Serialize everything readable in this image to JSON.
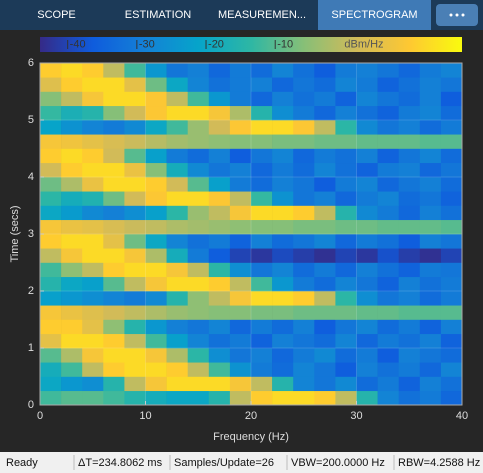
{
  "toolbar": {
    "tabs": [
      "SCOPE",
      "ESTIMATION",
      "MEASUREMEN...",
      "SPECTROGRAM"
    ],
    "selected": 3
  },
  "chart_data": {
    "type": "heatmap",
    "xlabel": "Frequency (Hz)",
    "ylabel": "Time (secs)",
    "xlim": [
      0,
      40
    ],
    "xticks": [
      0,
      10,
      20,
      30,
      40
    ],
    "ylim": [
      0,
      6
    ],
    "yticks": [
      0,
      1,
      2,
      3,
      4,
      5,
      6
    ],
    "grid": true,
    "colorbar_label": "dBm/Hz",
    "clim": [
      -44,
      17
    ],
    "cticks": [
      -40,
      -30,
      -20,
      -10
    ],
    "z": [
      [
        -12,
        -10,
        -10,
        -12,
        -15,
        -18,
        -20,
        -20,
        -15,
        0,
        10,
        12,
        12,
        10,
        0,
        -15,
        -28,
        -32,
        -30,
        -34
      ],
      [
        -20,
        -24,
        -26,
        -15,
        0,
        8,
        12,
        12,
        12,
        8,
        0,
        -15,
        -28,
        -31,
        -27,
        -33,
        -30,
        -35,
        -29,
        -32
      ],
      [
        -18,
        -12,
        0,
        10,
        12,
        12,
        10,
        0,
        -12,
        -25,
        -30,
        -33,
        -28,
        -31,
        -36,
        -29,
        -32,
        -30,
        -34,
        -28
      ],
      [
        -10,
        -2,
        8,
        12,
        12,
        8,
        -2,
        -14,
        -26,
        -31,
        -29,
        -34,
        -30,
        -27,
        -33,
        -30,
        -36,
        -29,
        -31,
        -33
      ],
      [
        5,
        12,
        12,
        10,
        0,
        -12,
        -22,
        -28,
        -32,
        -30,
        -35,
        -29,
        -31,
        -33,
        -28,
        -34,
        -30,
        -32,
        -29,
        -35
      ],
      [
        10,
        10,
        5,
        -5,
        -15,
        -24,
        -29,
        -31,
        -28,
        -34,
        -30,
        -33,
        -29,
        -36,
        -31,
        -28,
        -33,
        -30,
        -35,
        -29
      ],
      [
        8,
        6,
        4,
        2,
        0,
        -2,
        -4,
        -5,
        -6,
        -6,
        -7,
        -7,
        -8,
        -8,
        -8,
        -9,
        -9,
        -10,
        -10,
        -10
      ],
      [
        -22,
        -24,
        -26,
        -28,
        -30,
        -27,
        -15,
        -5,
        0,
        8,
        12,
        12,
        10,
        0,
        -14,
        -26,
        -31,
        -29,
        -33,
        -30
      ],
      [
        -15,
        -20,
        -22,
        -10,
        0,
        8,
        12,
        12,
        10,
        0,
        -12,
        -24,
        -30,
        -33,
        -28,
        -31,
        -35,
        -29,
        -32,
        -30
      ],
      [
        -12,
        -5,
        0,
        10,
        12,
        12,
        8,
        0,
        -14,
        -26,
        -31,
        -28,
        -33,
        -30,
        -34,
        -29,
        -32,
        -35,
        -30,
        -31
      ],
      [
        0,
        8,
        12,
        12,
        8,
        -2,
        -18,
        -30,
        -36,
        -40,
        -42,
        -39,
        -41,
        -43,
        -40,
        -42,
        -38,
        -41,
        -43,
        -40
      ],
      [
        10,
        12,
        12,
        5,
        -8,
        -20,
        -28,
        -32,
        -30,
        -35,
        -29,
        -33,
        -31,
        -28,
        -34,
        -30,
        -32,
        -36,
        -29,
        -31
      ],
      [
        8,
        6,
        5,
        3,
        1,
        0,
        -2,
        -3,
        -4,
        -5,
        -6,
        -6,
        -7,
        -7,
        -8,
        -8,
        -9,
        -9,
        -9,
        -10
      ],
      [
        -20,
        -23,
        -27,
        -29,
        -26,
        -22,
        -14,
        -4,
        0,
        8,
        12,
        12,
        10,
        0,
        -15,
        -27,
        -30,
        -34,
        -29,
        -32
      ],
      [
        -14,
        -18,
        -16,
        -8,
        2,
        9,
        12,
        12,
        9,
        0,
        -13,
        -25,
        -31,
        -29,
        -34,
        -30,
        -28,
        -33,
        -31,
        -35
      ],
      [
        -8,
        -2,
        6,
        12,
        12,
        10,
        2,
        -10,
        -22,
        -30,
        -33,
        -29,
        -31,
        -36,
        -30,
        -28,
        -34,
        -31,
        -29,
        -33
      ],
      [
        2,
        10,
        12,
        12,
        6,
        -6,
        -18,
        -27,
        -31,
        -29,
        -34,
        -30,
        -33,
        -28,
        -32,
        -35,
        -30,
        -29,
        -34,
        -31
      ],
      [
        10,
        12,
        10,
        2,
        -10,
        -22,
        -30,
        -33,
        -29,
        -36,
        -31,
        -28,
        -34,
        -30,
        -32,
        -29,
        -35,
        -31,
        -28,
        -33
      ],
      [
        8,
        7,
        5,
        3,
        1,
        -1,
        -3,
        -4,
        -5,
        -6,
        -6,
        -7,
        -7,
        -8,
        -8,
        -9,
        -9,
        -9,
        -10,
        -10
      ],
      [
        -21,
        -25,
        -28,
        -30,
        -27,
        -20,
        -12,
        -4,
        2,
        9,
        12,
        12,
        9,
        0,
        -14,
        -27,
        -31,
        -29,
        -33,
        -30
      ],
      [
        -13,
        -17,
        -15,
        -6,
        2,
        9,
        12,
        12,
        8,
        -2,
        -15,
        -26,
        -30,
        -34,
        -29,
        -32,
        -35,
        -30,
        -28,
        -33
      ],
      [
        -6,
        0,
        8,
        12,
        12,
        9,
        0,
        -12,
        -24,
        -30,
        -34,
        -29,
        -32,
        -30,
        -35,
        -28,
        -31,
        -33,
        -29,
        -36
      ],
      [
        4,
        10,
        12,
        12,
        5,
        -8,
        -20,
        -28,
        -32,
        -30,
        -29,
        -34,
        -31,
        -33,
        -28,
        -30,
        -35,
        -32,
        -29,
        -31
      ],
      [
        10,
        12,
        10,
        0,
        -12,
        -24,
        -31,
        -29,
        -34,
        -30,
        -33,
        -28,
        -32,
        -36,
        -30,
        -29,
        -31,
        -34,
        -30,
        -28
      ]
    ]
  },
  "status_bar": [
    "Ready",
    "ΔT=234.8062 ms",
    "Samples/Update=26",
    "VBW=200.0000 Hz",
    "RBW=4.2588 Hz"
  ]
}
